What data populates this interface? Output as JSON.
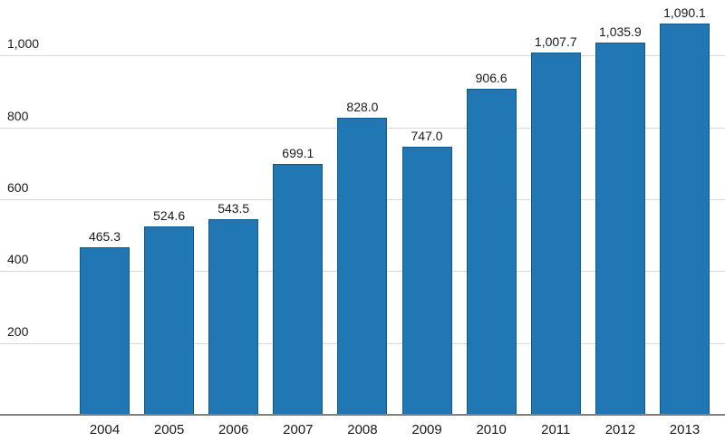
{
  "chart_data": {
    "type": "bar",
    "categories": [
      "2004",
      "2005",
      "2006",
      "2007",
      "2008",
      "2009",
      "2010",
      "2011",
      "2012",
      "2013"
    ],
    "values": [
      465.3,
      524.6,
      543.5,
      699.1,
      828.0,
      747.0,
      906.6,
      1007.7,
      1035.9,
      1090.1
    ],
    "value_labels": [
      "465.3",
      "524.6",
      "543.5",
      "699.1",
      "828.0",
      "747.0",
      "906.6",
      "1,007.7",
      "1,035.9",
      "1,090.1"
    ],
    "title": "",
    "xlabel": "",
    "ylabel": "",
    "ylim": [
      0,
      1155
    ],
    "yticks": [
      200,
      400,
      600,
      800,
      1000
    ],
    "ytick_labels": [
      "200",
      "400",
      "600",
      "800",
      "1,000"
    ],
    "grid": true,
    "legend": false,
    "bar_fill_color": "#2077b4",
    "bar_border_color": "#10598c",
    "label_color": "#1a1a1a",
    "gridline_color": "#d9d9d9",
    "axis_line_color": "#808080",
    "background_color": "#ffffff"
  }
}
